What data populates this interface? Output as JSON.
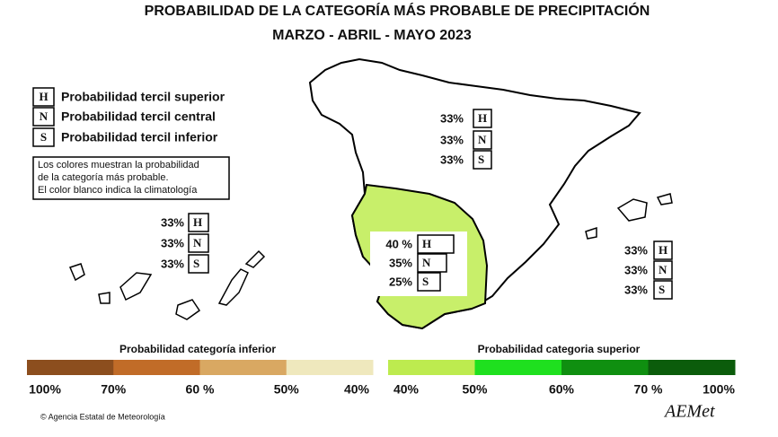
{
  "header": {
    "title": "PROBABILIDAD DE LA  CATEGORÍA MÁS PROBABLE DE PRECIPITACIÓN",
    "subtitle": "MARZO - ABRIL - MAYO 2023"
  },
  "legend": {
    "entries": [
      {
        "letter": "H",
        "label": "Probabilidad  tercil superior"
      },
      {
        "letter": "N",
        "label": "Probabilidad  tercil central"
      },
      {
        "letter": "S",
        "label": "Probabilidad  tercil inferior"
      }
    ],
    "note": [
      "Los colores muestran la probabilidad",
      "de la categoría más probable.",
      "El color blanco indica la climatología"
    ]
  },
  "regions": [
    {
      "rows": [
        {
          "value": "33%",
          "letter": "H"
        },
        {
          "value": "33%",
          "letter": "N"
        },
        {
          "value": "33%",
          "letter": "S"
        }
      ]
    },
    {
      "rows": [
        {
          "value": "33%",
          "letter": "H"
        },
        {
          "value": "33%",
          "letter": "N"
        },
        {
          "value": "33%",
          "letter": "S"
        }
      ]
    },
    {
      "rows": [
        {
          "value": "33%",
          "letter": "H"
        },
        {
          "value": "33%",
          "letter": "N"
        },
        {
          "value": "33%",
          "letter": "S"
        }
      ]
    },
    {
      "rows": [
        {
          "value": "40 %",
          "letter": "H"
        },
        {
          "value": "35%",
          "letter": "N"
        },
        {
          "value": "25%",
          "letter": "S"
        }
      ]
    }
  ],
  "scale": {
    "lower": {
      "title": "Probabilidad categoría inferior",
      "colors": [
        "#8c4e1e",
        "#c16c28",
        "#d9a862",
        "#efe8bd"
      ],
      "labels": [
        "100%",
        "70%",
        "60 %",
        "50%",
        "40%"
      ]
    },
    "upper": {
      "title": "Probabilidad categoria superior",
      "colors": [
        "#bdeb4f",
        "#1fe01f",
        "#0f8f10",
        "#0b5c0b"
      ],
      "labels": [
        "40%",
        "50%",
        "60%",
        "70 %",
        "100%"
      ]
    }
  },
  "footer": {
    "credit": "© Agencia Estatal de Meteorología",
    "logo": "AEMet"
  }
}
